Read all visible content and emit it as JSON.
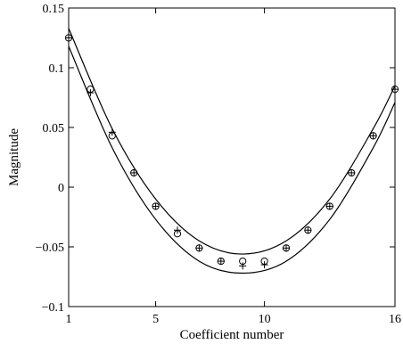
{
  "chart_data": {
    "type": "line",
    "title": "",
    "xlabel": "Coefficient number",
    "ylabel": "Magnitude",
    "xlim": [
      1,
      16
    ],
    "ylim": [
      -0.1,
      0.15
    ],
    "xticks": [
      1,
      5,
      10,
      16
    ],
    "yticks": [
      -0.1,
      -0.05,
      0,
      0.05,
      0.1,
      0.15
    ],
    "xtick_labels": [
      "1",
      "5",
      "10",
      "16"
    ],
    "ytick_labels": [
      "−0.1",
      "−0.05",
      "0",
      "0.05",
      "0.1",
      "0.15"
    ],
    "grid": false,
    "legend": "none",
    "series": [
      {
        "marker": "plus-circle",
        "x": [
          1,
          2,
          3,
          4,
          5,
          6,
          7,
          8,
          9,
          10,
          11,
          12,
          13,
          14,
          15,
          16
        ],
        "y": [
          0.125,
          0.079,
          0.046,
          0.012,
          -0.016,
          -0.036,
          -0.051,
          -0.062,
          -0.066,
          -0.065,
          -0.051,
          -0.036,
          -0.016,
          0.012,
          0.043,
          0.082
        ]
      },
      {
        "marker": "circle",
        "x": [
          1,
          2,
          3,
          4,
          5,
          6,
          7,
          8,
          9,
          10,
          11,
          12,
          13,
          14,
          15,
          16
        ],
        "y": [
          0.125,
          0.082,
          0.043,
          0.012,
          -0.016,
          -0.039,
          -0.051,
          -0.062,
          -0.062,
          -0.062,
          -0.051,
          -0.036,
          -0.016,
          0.012,
          0.043,
          0.082
        ]
      },
      {
        "marker": "none",
        "style": "solid-curve",
        "x": [
          1,
          3,
          5,
          7,
          9,
          11,
          13,
          15,
          16
        ],
        "y": [
          0.133,
          0.049,
          -0.01,
          -0.045,
          -0.056,
          -0.045,
          -0.01,
          0.049,
          0.085
        ]
      },
      {
        "marker": "none",
        "style": "solid-curve",
        "x": [
          1,
          3,
          5,
          7,
          9,
          11,
          13,
          15,
          16
        ],
        "y": [
          0.118,
          0.033,
          -0.027,
          -0.062,
          -0.072,
          -0.062,
          -0.027,
          0.033,
          0.071
        ]
      }
    ]
  }
}
